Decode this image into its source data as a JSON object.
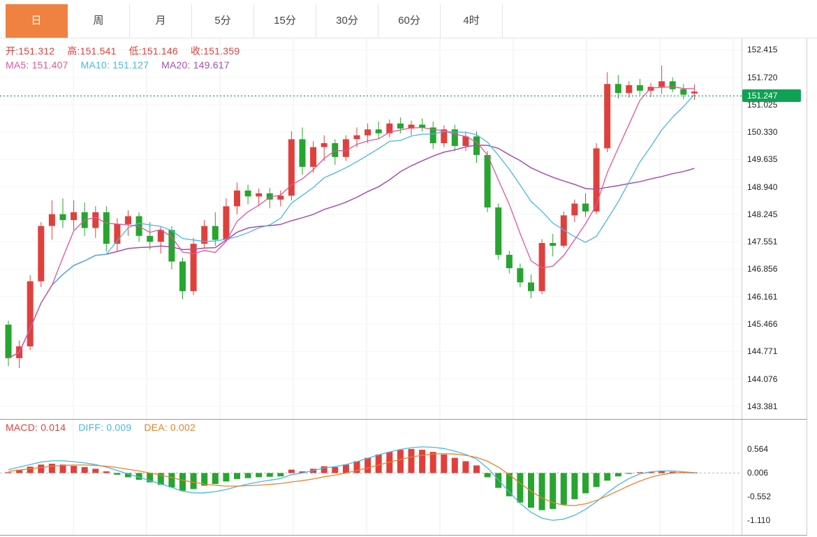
{
  "tabs": [
    {
      "id": "day",
      "label": "日",
      "active": true
    },
    {
      "id": "week",
      "label": "周",
      "active": false
    },
    {
      "id": "month",
      "label": "月",
      "active": false
    },
    {
      "id": "5min",
      "label": "5分",
      "active": false
    },
    {
      "id": "15min",
      "label": "15分",
      "active": false
    },
    {
      "id": "30min",
      "label": "30分",
      "active": false
    },
    {
      "id": "60min",
      "label": "60分",
      "active": false
    },
    {
      "id": "4hour",
      "label": "4时",
      "active": false
    }
  ],
  "colors": {
    "up": "#e0403c",
    "down": "#26a52f",
    "ma5": "#e0559a",
    "ma10": "#49b6e8",
    "ma20": "#a050b0",
    "diff": "#4ab8e0",
    "dea": "#e8832a",
    "price_line": "#12a05a",
    "price_tag_bg": "#0fa254",
    "tab_active_bg": "#ef8240",
    "grid": "#ececec",
    "grid_h": "#f5f5f5",
    "zero_line": "#bbbbbb"
  },
  "main_overlay": {
    "items": [
      {
        "id": "open",
        "label": "开:",
        "value": "151.312",
        "color": "#e0403c"
      },
      {
        "id": "high",
        "label": "高:",
        "value": "151.541",
        "color": "#e0403c"
      },
      {
        "id": "low",
        "label": "低:",
        "value": "151.146",
        "color": "#e0403c"
      },
      {
        "id": "close",
        "label": "收:",
        "value": "151.359",
        "color": "#e0403c"
      }
    ],
    "ma_items": [
      {
        "id": "ma5",
        "label": "MA5: ",
        "value": "151.407",
        "color": "#e0559a"
      },
      {
        "id": "ma10",
        "label": "MA10: ",
        "value": "151.127",
        "color": "#49b6e8"
      },
      {
        "id": "ma20",
        "label": "MA20: ",
        "value": "149.617",
        "color": "#a050b0"
      }
    ]
  },
  "macd_overlay": {
    "items": [
      {
        "id": "macd",
        "label": "MACD: ",
        "value": "0.014",
        "color": "#e0403c"
      },
      {
        "id": "diff",
        "label": "DIFF: ",
        "value": "0.009",
        "color": "#4ab8e0"
      },
      {
        "id": "dea",
        "label": "DEA: ",
        "value": "0.002",
        "color": "#e8832a"
      }
    ]
  },
  "price_tag": "151.247",
  "chart_data": [
    {
      "type": "candlestick",
      "timeframe": "日",
      "ylim": [
        143.2,
        152.6
      ],
      "y_ticks": [
        "152.415",
        "151.720",
        "151.025",
        "150.330",
        "149.635",
        "148.940",
        "148.245",
        "147.551",
        "146.856",
        "146.161",
        "145.466",
        "144.771",
        "144.076",
        "143.381"
      ],
      "price_line": 151.247,
      "last": {
        "open": 151.312,
        "high": 151.541,
        "low": 151.146,
        "close": 151.359
      },
      "ma_periods": [
        5,
        10,
        20
      ],
      "grid": true,
      "legend_position": "top-left",
      "ohlc": [
        [
          145.45,
          145.55,
          144.4,
          144.6
        ],
        [
          144.6,
          145.05,
          144.35,
          144.9
        ],
        [
          144.9,
          146.7,
          144.8,
          146.55
        ],
        [
          146.55,
          148.05,
          146.4,
          147.95
        ],
        [
          147.95,
          148.6,
          147.6,
          148.25
        ],
        [
          148.25,
          148.65,
          147.9,
          148.1
        ],
        [
          148.1,
          148.6,
          147.85,
          148.3
        ],
        [
          148.3,
          148.55,
          147.7,
          147.9
        ],
        [
          147.9,
          148.45,
          147.65,
          148.3
        ],
        [
          148.3,
          148.45,
          147.3,
          147.5
        ],
        [
          147.5,
          148.15,
          147.3,
          148.0
        ],
        [
          148.0,
          148.35,
          147.7,
          148.2
        ],
        [
          148.2,
          148.3,
          147.55,
          147.7
        ],
        [
          147.7,
          148.05,
          147.35,
          147.55
        ],
        [
          147.55,
          147.95,
          147.25,
          147.85
        ],
        [
          147.85,
          147.95,
          146.85,
          147.05
        ],
        [
          147.05,
          147.15,
          146.1,
          146.3
        ],
        [
          146.3,
          147.65,
          146.2,
          147.5
        ],
        [
          147.5,
          148.1,
          147.4,
          147.95
        ],
        [
          147.95,
          148.3,
          147.45,
          147.6
        ],
        [
          147.6,
          148.65,
          147.55,
          148.45
        ],
        [
          148.45,
          149.05,
          148.25,
          148.85
        ],
        [
          148.85,
          149.0,
          148.5,
          148.7
        ],
        [
          148.7,
          148.9,
          148.45,
          148.78
        ],
        [
          148.78,
          148.92,
          148.4,
          148.62
        ],
        [
          148.62,
          148.85,
          148.45,
          148.72
        ],
        [
          148.72,
          150.35,
          148.6,
          150.15
        ],
        [
          150.15,
          150.45,
          149.25,
          149.45
        ],
        [
          149.45,
          150.1,
          149.3,
          149.95
        ],
        [
          149.95,
          150.25,
          149.6,
          150.05
        ],
        [
          150.05,
          150.15,
          149.5,
          149.7
        ],
        [
          149.7,
          150.25,
          149.6,
          150.15
        ],
        [
          150.15,
          150.45,
          149.95,
          150.25
        ],
        [
          150.25,
          150.55,
          150.05,
          150.4
        ],
        [
          150.4,
          150.6,
          150.15,
          150.3
        ],
        [
          150.3,
          150.65,
          150.2,
          150.55
        ],
        [
          150.55,
          150.7,
          150.3,
          150.42
        ],
        [
          150.42,
          150.62,
          150.25,
          150.52
        ],
        [
          150.52,
          150.68,
          150.35,
          150.45
        ],
        [
          150.45,
          150.6,
          149.9,
          150.05
        ],
        [
          150.05,
          150.5,
          149.95,
          150.4
        ],
        [
          150.4,
          150.52,
          149.85,
          149.98
        ],
        [
          149.98,
          150.32,
          149.85,
          150.22
        ],
        [
          150.22,
          150.35,
          149.55,
          149.75
        ],
        [
          149.75,
          149.85,
          148.3,
          148.42
        ],
        [
          148.42,
          148.52,
          147.1,
          147.22
        ],
        [
          147.22,
          147.32,
          146.75,
          146.88
        ],
        [
          146.88,
          147.0,
          146.4,
          146.52
        ],
        [
          146.52,
          146.72,
          146.12,
          146.3
        ],
        [
          146.3,
          147.62,
          146.22,
          147.52
        ],
        [
          147.52,
          147.75,
          147.18,
          147.45
        ],
        [
          147.45,
          148.32,
          147.4,
          148.22
        ],
        [
          148.22,
          148.62,
          148.05,
          148.52
        ],
        [
          148.52,
          148.78,
          148.18,
          148.32
        ],
        [
          148.32,
          150.05,
          148.25,
          149.92
        ],
        [
          149.92,
          151.85,
          149.82,
          151.55
        ],
        [
          151.55,
          151.78,
          151.18,
          151.32
        ],
        [
          151.32,
          151.62,
          151.2,
          151.52
        ],
        [
          151.52,
          151.68,
          151.28,
          151.38
        ],
        [
          151.38,
          151.58,
          151.22,
          151.48
        ],
        [
          151.48,
          152.02,
          151.3,
          151.62
        ],
        [
          151.62,
          151.72,
          151.34,
          151.42
        ],
        [
          151.42,
          151.55,
          151.16,
          151.28
        ],
        [
          151.312,
          151.541,
          151.146,
          151.359
        ]
      ]
    },
    {
      "type": "bar",
      "name": "MACD",
      "ylim": [
        -1.3,
        0.85
      ],
      "y_ticks": [
        "0.564",
        "0.006",
        "-0.552",
        "-1.110"
      ],
      "values": {
        "macd": 0.014,
        "diff": 0.009,
        "dea": 0.002
      },
      "histogram": [
        0.02,
        0.08,
        0.15,
        0.2,
        0.22,
        0.2,
        0.17,
        0.14,
        0.1,
        0.04,
        -0.04,
        -0.1,
        -0.16,
        -0.22,
        -0.28,
        -0.34,
        -0.42,
        -0.38,
        -0.3,
        -0.26,
        -0.2,
        -0.14,
        -0.12,
        -0.1,
        -0.09,
        -0.08,
        0.08,
        0.04,
        0.1,
        0.16,
        0.14,
        0.2,
        0.28,
        0.36,
        0.44,
        0.5,
        0.55,
        0.57,
        0.55,
        0.5,
        0.44,
        0.36,
        0.28,
        0.18,
        -0.1,
        -0.35,
        -0.55,
        -0.7,
        -0.82,
        -0.88,
        -0.85,
        -0.75,
        -0.62,
        -0.48,
        -0.33,
        -0.18,
        -0.08,
        -0.02,
        0.02,
        0.03,
        0.04,
        0.03,
        0.02,
        0.014
      ],
      "series": [
        {
          "name": "DIFF",
          "values": [
            0.08,
            0.14,
            0.2,
            0.26,
            0.29,
            0.29,
            0.27,
            0.24,
            0.2,
            0.14,
            0.06,
            -0.02,
            -0.1,
            -0.18,
            -0.26,
            -0.34,
            -0.43,
            -0.47,
            -0.47,
            -0.44,
            -0.39,
            -0.32,
            -0.26,
            -0.21,
            -0.17,
            -0.13,
            -0.04,
            0.0,
            0.06,
            0.12,
            0.15,
            0.2,
            0.27,
            0.35,
            0.43,
            0.5,
            0.56,
            0.6,
            0.62,
            0.61,
            0.58,
            0.52,
            0.44,
            0.33,
            0.12,
            -0.16,
            -0.45,
            -0.72,
            -0.93,
            -1.07,
            -1.12,
            -1.09,
            -1.0,
            -0.86,
            -0.68,
            -0.47,
            -0.28,
            -0.13,
            -0.02,
            0.03,
            0.05,
            0.05,
            0.03,
            0.009
          ]
        },
        {
          "name": "DEA",
          "values": [
            0.04,
            0.07,
            0.1,
            0.13,
            0.16,
            0.18,
            0.19,
            0.19,
            0.18,
            0.16,
            0.13,
            0.09,
            0.05,
            0.0,
            -0.05,
            -0.11,
            -0.17,
            -0.22,
            -0.26,
            -0.29,
            -0.31,
            -0.31,
            -0.3,
            -0.29,
            -0.27,
            -0.25,
            -0.21,
            -0.18,
            -0.14,
            -0.09,
            -0.05,
            0.0,
            0.06,
            0.12,
            0.19,
            0.26,
            0.32,
            0.38,
            0.42,
            0.45,
            0.46,
            0.45,
            0.42,
            0.37,
            0.28,
            0.14,
            -0.04,
            -0.24,
            -0.43,
            -0.59,
            -0.7,
            -0.76,
            -0.77,
            -0.73,
            -0.65,
            -0.54,
            -0.42,
            -0.3,
            -0.19,
            -0.1,
            -0.04,
            0.0,
            0.01,
            0.002
          ]
        }
      ]
    }
  ]
}
